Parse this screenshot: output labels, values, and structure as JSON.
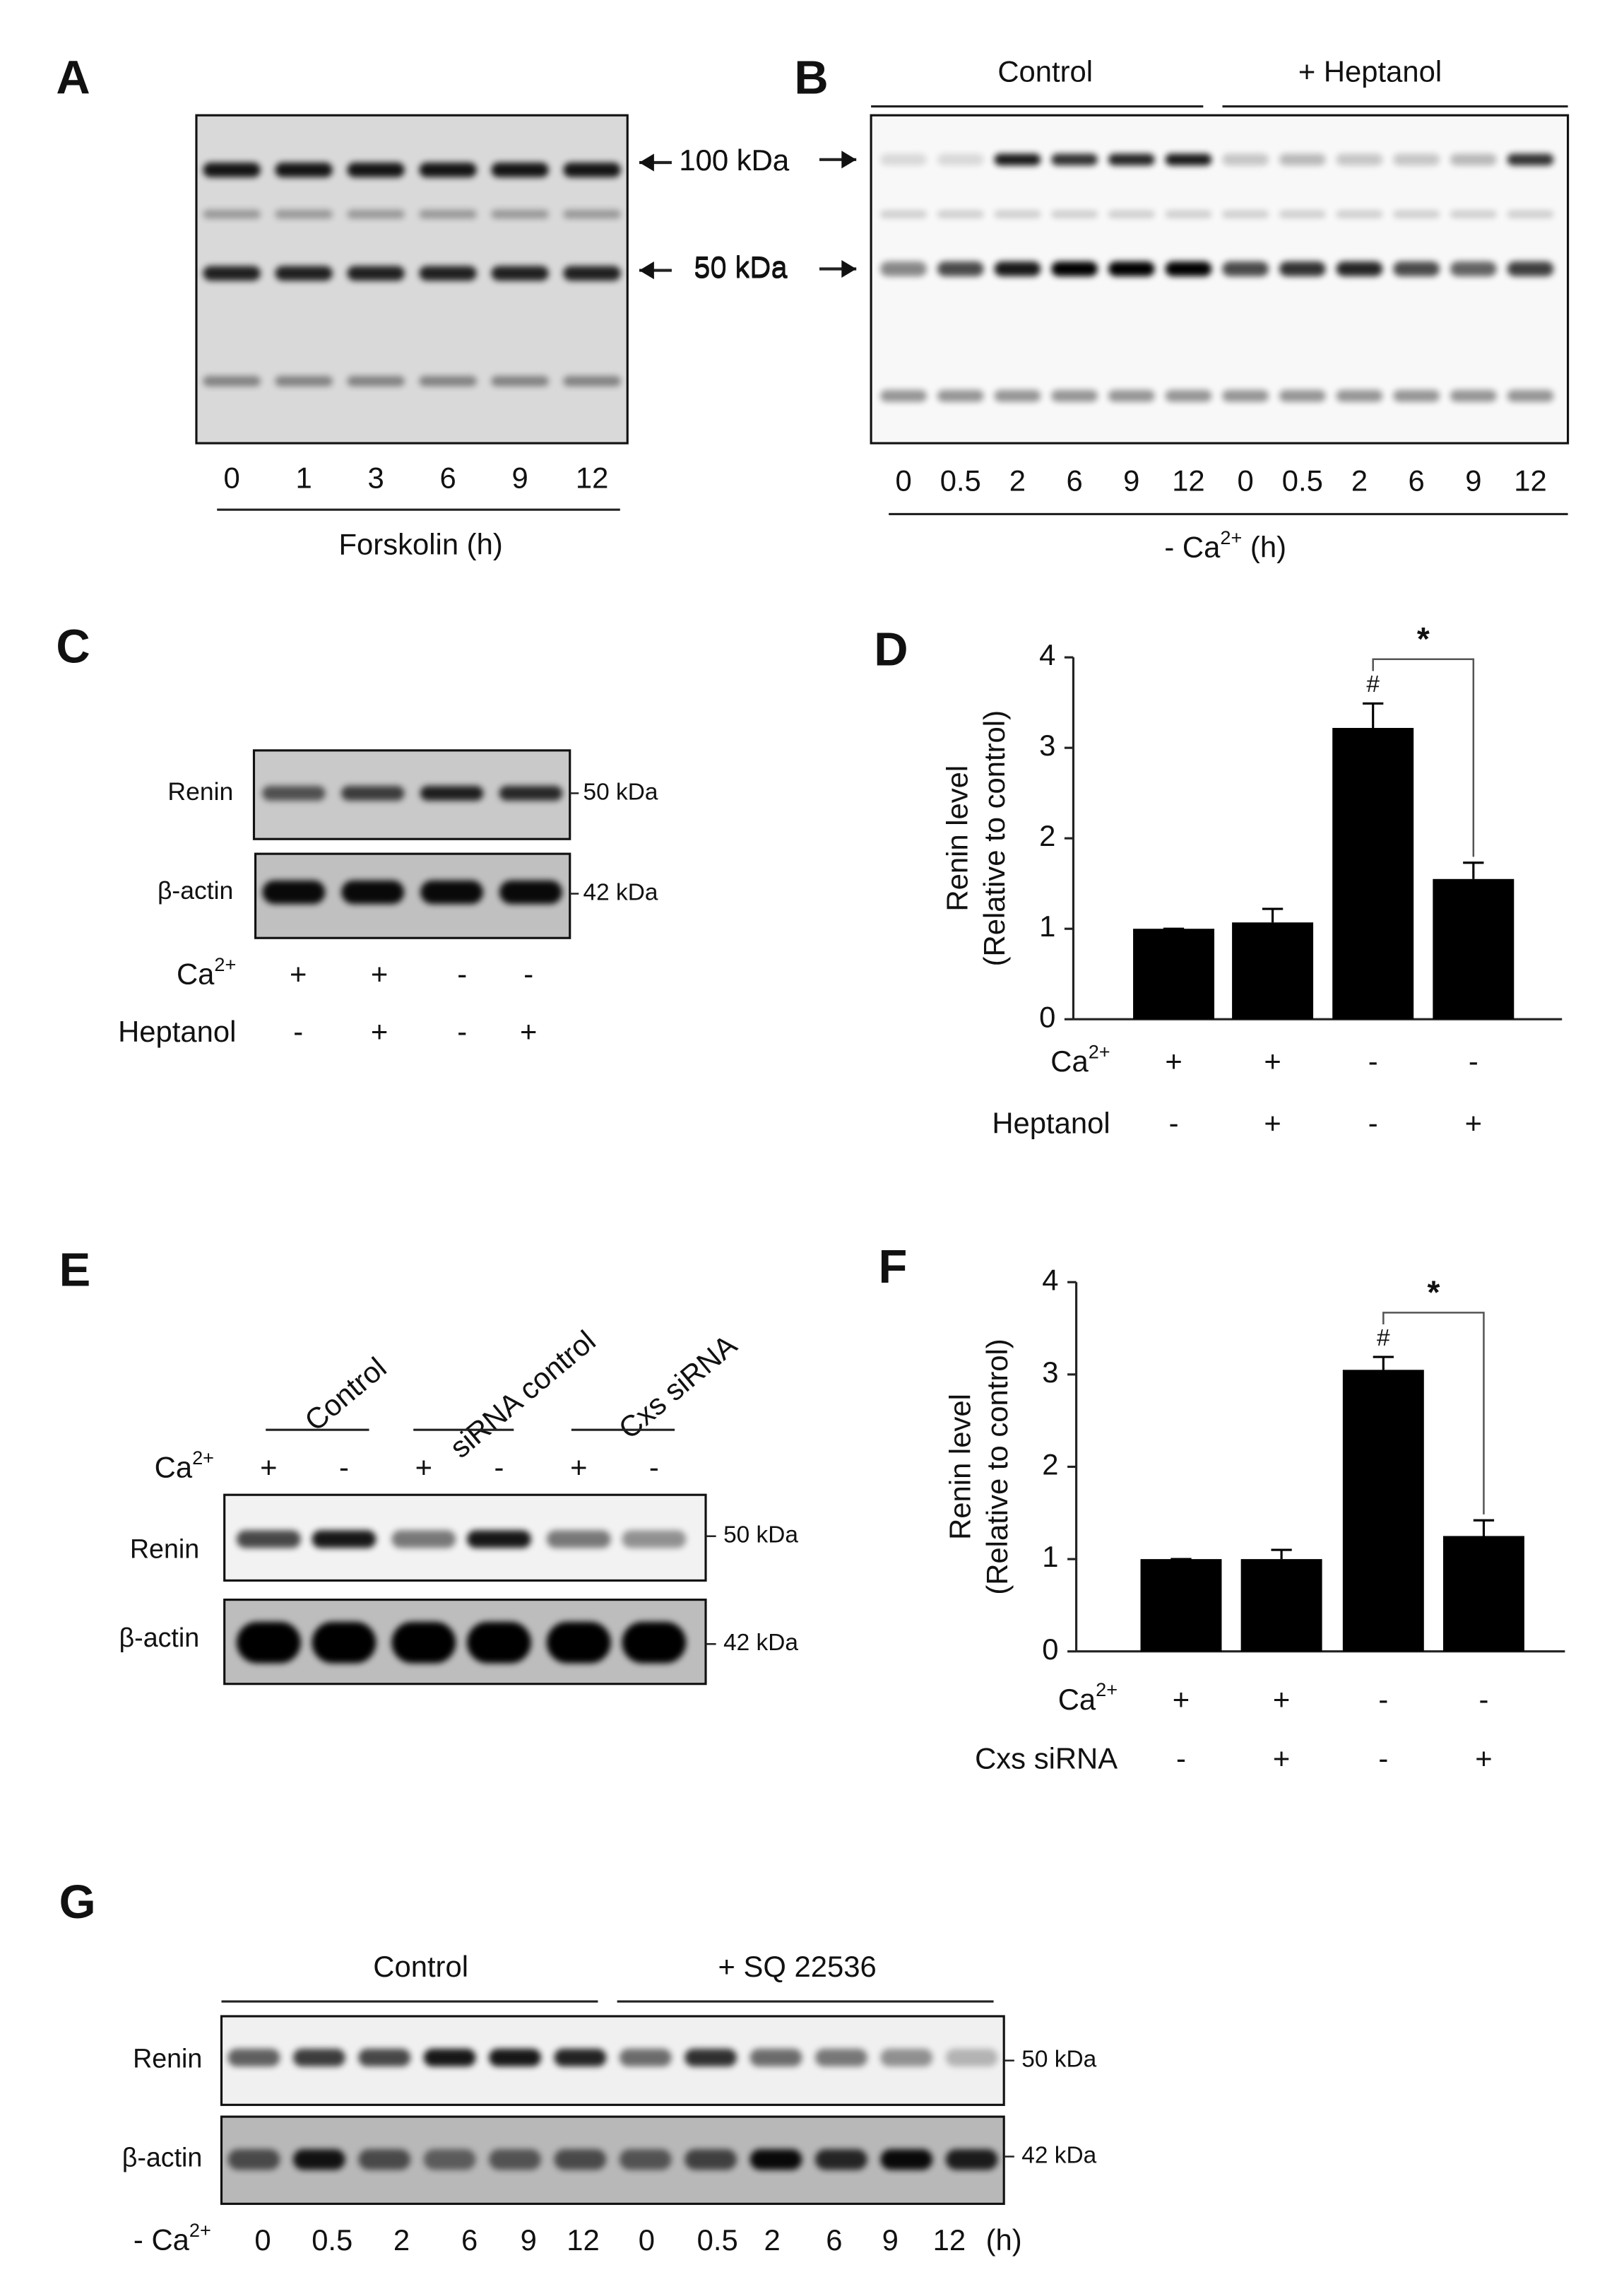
{
  "panels": {
    "A": {
      "label": "A",
      "markers": [
        "100 kDa",
        "50 kDa"
      ],
      "lanes": [
        "0",
        "1",
        "3",
        "6",
        "9",
        "12"
      ],
      "xlabel": "Forskolin (h)"
    },
    "B": {
      "label": "B",
      "groups": [
        "Control",
        "+ Heptanol"
      ],
      "markers": [
        "100 kDa",
        "50 kDa"
      ],
      "lanes": [
        "0",
        "0.5",
        "2",
        "6",
        "9",
        "12",
        "0",
        "0.5",
        "2",
        "6",
        "9",
        "12"
      ],
      "xlabel": {
        "base": "- Ca",
        "sup": "2+",
        "tail": " (h)"
      }
    },
    "C": {
      "label": "C",
      "rows": [
        "Renin",
        "β-actin"
      ],
      "markers": [
        "50 kDa",
        "42 kDa"
      ],
      "conditions": [
        {
          "label": {
            "base": "Ca",
            "sup": "2+"
          },
          "signs": [
            "+",
            "+",
            "-",
            "-"
          ]
        },
        {
          "label": {
            "base": "Heptanol"
          },
          "signs": [
            "-",
            "+",
            "-",
            "+"
          ]
        }
      ]
    },
    "E": {
      "label": "E",
      "groups": [
        "Control",
        "siRNA control",
        "Cxs siRNA"
      ],
      "condition": {
        "label": {
          "base": "Ca",
          "sup": "2+"
        },
        "signs": [
          "+",
          "-",
          "+",
          "-",
          "+",
          "-"
        ]
      },
      "rows": [
        "Renin",
        "β-actin"
      ],
      "markers": [
        "50 kDa",
        "42 kDa"
      ]
    },
    "G": {
      "label": "G",
      "groups": [
        "Control",
        "+ SQ 22536"
      ],
      "rows": [
        "Renin",
        "β-actin"
      ],
      "markers": [
        "50 kDa",
        "42 kDa"
      ],
      "xlabel": {
        "base": "- Ca",
        "sup": "2+"
      },
      "lanes": [
        "0",
        "0.5",
        "2",
        "6",
        "9",
        "12",
        "0",
        "0.5",
        "2",
        "6",
        "9",
        "12"
      ],
      "unit": "(h)"
    }
  },
  "chart_data": [
    {
      "type": "bar",
      "panel_label": "D",
      "ylabel": [
        "Renin level",
        "(Relative to control)"
      ],
      "values": [
        1,
        1.07,
        3.22,
        1.55
      ],
      "errors": [
        0,
        0.15,
        0.27,
        0.18
      ],
      "color": "#000000",
      "ylim": [
        0,
        4
      ],
      "yticks": [
        0,
        1,
        2,
        3,
        4
      ],
      "conditions": [
        {
          "label": {
            "base": "Ca",
            "sup": "2+"
          },
          "signs": [
            "+",
            "+",
            "-",
            "-"
          ]
        },
        {
          "label": {
            "base": "Heptanol"
          },
          "signs": [
            "-",
            "+",
            "-",
            "+"
          ]
        }
      ],
      "marker": "#",
      "significance": "*"
    },
    {
      "type": "bar",
      "panel_label": "F",
      "ylabel": [
        "Renin level",
        "(Relative to control)"
      ],
      "values": [
        1,
        1.0,
        3.05,
        1.25
      ],
      "errors": [
        0,
        0.1,
        0.14,
        0.17
      ],
      "color": "#000000",
      "ylim": [
        0,
        4
      ],
      "yticks": [
        0,
        1,
        2,
        3,
        4
      ],
      "conditions": [
        {
          "label": {
            "base": "Ca",
            "sup": "2+"
          },
          "signs": [
            "+",
            "+",
            "-",
            "-"
          ]
        },
        {
          "label": {
            "base": "Cxs siRNA"
          },
          "signs": [
            "-",
            "+",
            "-",
            "+"
          ]
        }
      ],
      "marker": "#",
      "significance": "*"
    }
  ]
}
